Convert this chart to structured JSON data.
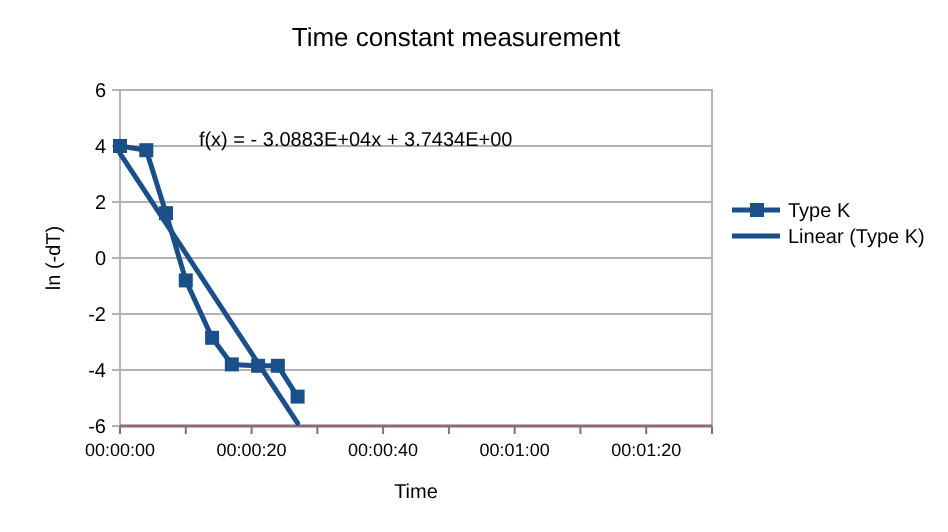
{
  "chart_data": {
    "type": "line",
    "title": "Time constant measurement",
    "xlabel": "Time",
    "ylabel": "ln (-dT)",
    "annotations": [
      "f(x) =  - 3.0883E+04x + 3.7434E+00"
    ],
    "series": [
      {
        "name": "Type K",
        "color": "#1b4f8a",
        "marker": "square",
        "x": [
          0,
          4,
          7,
          10,
          14,
          17,
          21,
          24,
          27
        ],
        "values": [
          4.0,
          3.85,
          1.6,
          -0.8,
          -2.85,
          -3.8,
          -3.85,
          -3.85,
          -4.95
        ]
      },
      {
        "name": "Linear (Type K)",
        "color": "#1b4f8a",
        "marker": "none",
        "x": [
          0,
          27
        ],
        "values": [
          3.74,
          -5.9
        ]
      }
    ],
    "xlim": [
      0,
      90
    ],
    "xticks": [
      {
        "value": 0,
        "label": "00:00:00"
      },
      {
        "value": 10,
        "label": null
      },
      {
        "value": 20,
        "label": "00:00:20"
      },
      {
        "value": 30,
        "label": null
      },
      {
        "value": 40,
        "label": "00:00:40"
      },
      {
        "value": 50,
        "label": null
      },
      {
        "value": 60,
        "label": "00:01:00"
      },
      {
        "value": 70,
        "label": null
      },
      {
        "value": 80,
        "label": "00:01:20"
      },
      {
        "value": 90,
        "label": null
      }
    ],
    "ylim": [
      -6,
      6
    ],
    "yticks": [
      -6,
      -4,
      -2,
      0,
      2,
      4,
      6
    ],
    "grid": "y",
    "legend": "right"
  }
}
